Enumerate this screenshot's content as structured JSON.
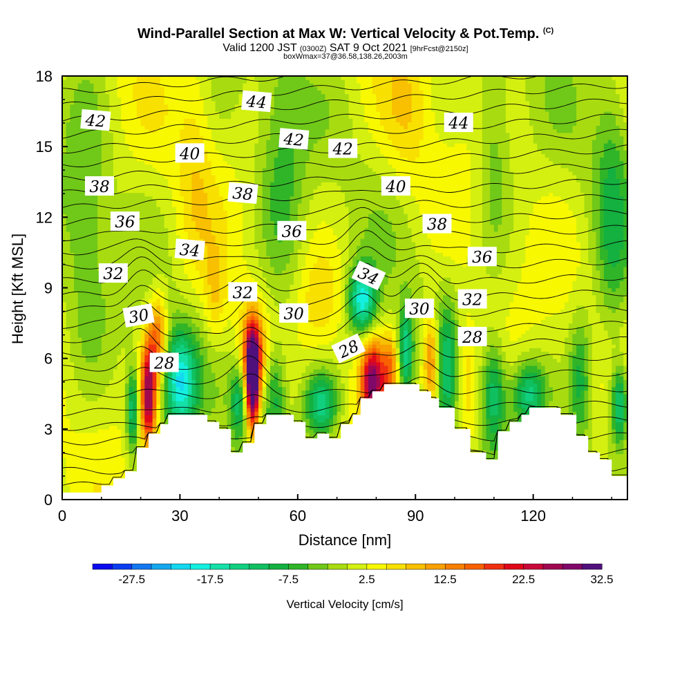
{
  "title": "Wind-Parallel Section at Max W: Vertical Velocity & Pot.Temp.",
  "title_mark": "(C)",
  "subtitle": {
    "valid_prefix": "Valid 1200 JST",
    "utc": "(0300Z)",
    "date": "SAT 9 Oct 2021",
    "forecast": "[9hrFcst@2150z]"
  },
  "subsubtitle": "boxWmax=37@36.58,138.26,2003m",
  "colors": {
    "terrain": "#ffffff",
    "isentrope": "#000000",
    "scale": [
      "#0a0af0",
      "#0a3cf0",
      "#1278f0",
      "#14a8f0",
      "#14d8f0",
      "#14f0e0",
      "#14e0a8",
      "#10d080",
      "#10c060",
      "#14b040",
      "#30b428",
      "#70c818",
      "#a8dc10",
      "#d4f010",
      "#f8f800",
      "#f8e000",
      "#f8c000",
      "#f8a000",
      "#f88000",
      "#f86000",
      "#f03010",
      "#e00818",
      "#c80838",
      "#a00850",
      "#800868",
      "#50107c"
    ]
  },
  "chart_data": {
    "type": "heatmap",
    "xlabel": "Distance [nm]",
    "ylabel": "Height [Kft MSL]",
    "xlim": [
      0,
      144
    ],
    "ylim": [
      0,
      18
    ],
    "xticks": [
      "0",
      "30",
      "60",
      "90",
      "120"
    ],
    "yticks": [
      "0",
      "3",
      "6",
      "9",
      "12",
      "15",
      "18"
    ],
    "colorbar": {
      "label": "Vertical Velocity [cm/s]",
      "min": -32.5,
      "step": 2.5,
      "bins": 26,
      "tick_labels": [
        "-27.5",
        "-17.5",
        "-7.5",
        "2.5",
        "12.5",
        "22.5",
        "32.5"
      ]
    },
    "terrain": [
      [
        0,
        0.3
      ],
      [
        10,
        0.3
      ],
      [
        10,
        0.6
      ],
      [
        13,
        0.6
      ],
      [
        13,
        0.9
      ],
      [
        16,
        0.9
      ],
      [
        16,
        1.2
      ],
      [
        19,
        1.2
      ],
      [
        19,
        2.2
      ],
      [
        22,
        2.2
      ],
      [
        22,
        2.8
      ],
      [
        25,
        2.8
      ],
      [
        25,
        3.2
      ],
      [
        27,
        3.2
      ],
      [
        27,
        3.6
      ],
      [
        37,
        3.6
      ],
      [
        37,
        3.3
      ],
      [
        40,
        3.3
      ],
      [
        40,
        3.0
      ],
      [
        43,
        3.0
      ],
      [
        43,
        2.0
      ],
      [
        46,
        2.0
      ],
      [
        46,
        2.4
      ],
      [
        49,
        2.4
      ],
      [
        49,
        3.2
      ],
      [
        52,
        3.2
      ],
      [
        52,
        3.6
      ],
      [
        59,
        3.6
      ],
      [
        59,
        3.3
      ],
      [
        62,
        3.3
      ],
      [
        62,
        2.6
      ],
      [
        65,
        2.6
      ],
      [
        65,
        2.8
      ],
      [
        68,
        2.8
      ],
      [
        68,
        2.6
      ],
      [
        71,
        2.6
      ],
      [
        71,
        3.2
      ],
      [
        74,
        3.2
      ],
      [
        74,
        3.6
      ],
      [
        76,
        3.6
      ],
      [
        76,
        4.3
      ],
      [
        79,
        4.3
      ],
      [
        79,
        4.6
      ],
      [
        82,
        4.6
      ],
      [
        82,
        4.9
      ],
      [
        91,
        4.9
      ],
      [
        91,
        4.6
      ],
      [
        94,
        4.6
      ],
      [
        94,
        4.3
      ],
      [
        96,
        4.3
      ],
      [
        96,
        3.9
      ],
      [
        100,
        3.9
      ],
      [
        100,
        3.0
      ],
      [
        104,
        3.0
      ],
      [
        104,
        2.0
      ],
      [
        108,
        2.0
      ],
      [
        108,
        1.7
      ],
      [
        111,
        1.7
      ],
      [
        111,
        2.9
      ],
      [
        114,
        2.9
      ],
      [
        114,
        3.3
      ],
      [
        117,
        3.3
      ],
      [
        117,
        3.6
      ],
      [
        119,
        3.6
      ],
      [
        119,
        3.9
      ],
      [
        127,
        3.9
      ],
      [
        127,
        3.6
      ],
      [
        131,
        3.6
      ],
      [
        131,
        2.7
      ],
      [
        134,
        2.7
      ],
      [
        134,
        2.0
      ],
      [
        137,
        2.0
      ],
      [
        137,
        1.7
      ],
      [
        140,
        1.7
      ],
      [
        140,
        1.0
      ],
      [
        144,
        1.0
      ]
    ],
    "isentropes": [
      {
        "theta": 28,
        "base_height": 5.3
      },
      {
        "theta": 30,
        "base_height": 7.6
      },
      {
        "theta": 32,
        "base_height": 9.3
      },
      {
        "theta": 34,
        "base_height": 10.6
      },
      {
        "theta": 36,
        "base_height": 11.9
      },
      {
        "theta": 38,
        "base_height": 13.3
      },
      {
        "theta": 40,
        "base_height": 14.4
      },
      {
        "theta": 42,
        "base_height": 15.9
      },
      {
        "theta": 44,
        "base_height": 17.3
      }
    ],
    "contour_labels": [
      {
        "text": "42",
        "x": 8.5,
        "y": 16.1,
        "rot": 5
      },
      {
        "text": "44",
        "x": 49.5,
        "y": 16.9,
        "rot": 5
      },
      {
        "text": "44",
        "x": 101,
        "y": 16.0,
        "rot": 0
      },
      {
        "text": "42",
        "x": 59,
        "y": 15.3,
        "rot": 5
      },
      {
        "text": "42",
        "x": 71.5,
        "y": 14.9,
        "rot": 0
      },
      {
        "text": "40",
        "x": 32.5,
        "y": 14.7,
        "rot": 0
      },
      {
        "text": "38",
        "x": 9.5,
        "y": 13.3,
        "rot": 0
      },
      {
        "text": "38",
        "x": 46,
        "y": 13.0,
        "rot": 5
      },
      {
        "text": "40",
        "x": 85,
        "y": 13.3,
        "rot": 0
      },
      {
        "text": "36",
        "x": 16,
        "y": 11.8,
        "rot": 0
      },
      {
        "text": "36",
        "x": 58.5,
        "y": 11.4,
        "rot": 0
      },
      {
        "text": "38",
        "x": 95.5,
        "y": 11.7,
        "rot": 0
      },
      {
        "text": "34",
        "x": 32.5,
        "y": 10.6,
        "rot": 5
      },
      {
        "text": "36",
        "x": 107,
        "y": 10.3,
        "rot": 0
      },
      {
        "text": "32",
        "x": 13,
        "y": 9.6,
        "rot": 0
      },
      {
        "text": "34",
        "x": 78,
        "y": 9.5,
        "rot": 25
      },
      {
        "text": "32",
        "x": 46,
        "y": 8.8,
        "rot": 0
      },
      {
        "text": "32",
        "x": 104.5,
        "y": 8.5,
        "rot": 0
      },
      {
        "text": "30",
        "x": 19.5,
        "y": 7.8,
        "rot": -10
      },
      {
        "text": "30",
        "x": 59,
        "y": 7.9,
        "rot": 0
      },
      {
        "text": "30",
        "x": 91,
        "y": 8.1,
        "rot": 0
      },
      {
        "text": "28",
        "x": 104.5,
        "y": 6.9,
        "rot": 0
      },
      {
        "text": "28",
        "x": 73,
        "y": 6.4,
        "rot": -25
      },
      {
        "text": "28",
        "x": 26,
        "y": 5.8,
        "rot": 0
      }
    ],
    "features": [
      {
        "x": 22,
        "y": 4.5,
        "w": 26,
        "sx": 1.4,
        "sy": 1.6
      },
      {
        "x": 24.5,
        "y": 6.8,
        "w": 14,
        "sx": 1.6,
        "sy": 1.3
      },
      {
        "x": 18,
        "y": 3.8,
        "w": -14,
        "sx": 1.2,
        "sy": 1.3
      },
      {
        "x": 30,
        "y": 5.0,
        "w": -20,
        "sx": 3.0,
        "sy": 1.5
      },
      {
        "x": 48.5,
        "y": 5.0,
        "w": 34,
        "sx": 1.2,
        "sy": 1.5
      },
      {
        "x": 48.5,
        "y": 6.3,
        "w": 14,
        "sx": 2.5,
        "sy": 1.2
      },
      {
        "x": 45,
        "y": 4.3,
        "w": -12,
        "sx": 1.5,
        "sy": 1.2
      },
      {
        "x": 54,
        "y": 4.5,
        "w": -10,
        "sx": 2.0,
        "sy": 1.5
      },
      {
        "x": 66,
        "y": 4.0,
        "w": -16,
        "sx": 3.0,
        "sy": 1.0
      },
      {
        "x": 79,
        "y": 5.0,
        "w": 26,
        "sx": 2.0,
        "sy": 1.2
      },
      {
        "x": 83.5,
        "y": 5.5,
        "w": 12,
        "sx": 1.5,
        "sy": 1.0
      },
      {
        "x": 76.5,
        "y": 8.5,
        "w": -20,
        "sx": 2.5,
        "sy": 1.0
      },
      {
        "x": 87.5,
        "y": 6.3,
        "w": -16,
        "sx": 1.3,
        "sy": 1.3
      },
      {
        "x": 94,
        "y": 5.8,
        "w": 16,
        "sx": 1.5,
        "sy": 1.5
      },
      {
        "x": 98,
        "y": 5.5,
        "w": -10,
        "sx": 2.0,
        "sy": 2.0
      },
      {
        "x": 103,
        "y": 5.0,
        "w": 8,
        "sx": 2.0,
        "sy": 2.0
      },
      {
        "x": 110,
        "y": 4.5,
        "w": -12,
        "sx": 2.0,
        "sy": 1.5
      },
      {
        "x": 119,
        "y": 4.5,
        "w": -14,
        "sx": 3.0,
        "sy": 1.0
      },
      {
        "x": 132,
        "y": 5.0,
        "w": -10,
        "sx": 2.0,
        "sy": 2.0
      },
      {
        "x": 142,
        "y": 4.0,
        "w": -16,
        "sx": 1.5,
        "sy": 1.2
      },
      {
        "x": 39,
        "y": 8.5,
        "w": 6,
        "sx": 2.0,
        "sy": 1.5
      },
      {
        "x": 66,
        "y": 8.5,
        "w": 5,
        "sx": 4.0,
        "sy": 1.5
      },
      {
        "x": 34,
        "y": 15.0,
        "w": 4,
        "sx": 3.0,
        "sy": 4.0
      },
      {
        "x": 88,
        "y": 16.5,
        "w": 4,
        "sx": 4.0,
        "sy": 2.5
      },
      {
        "x": 56,
        "y": 13.0,
        "w": -6,
        "sx": 4.0,
        "sy": 5.0
      },
      {
        "x": 110,
        "y": 14.5,
        "w": -6,
        "sx": 3.0,
        "sy": 3.0
      },
      {
        "x": 140,
        "y": 12.0,
        "w": -7,
        "sx": 3.0,
        "sy": 5.0
      },
      {
        "x": 6,
        "y": 12.0,
        "w": -5,
        "sx": 4.0,
        "sy": 5.0
      }
    ]
  }
}
